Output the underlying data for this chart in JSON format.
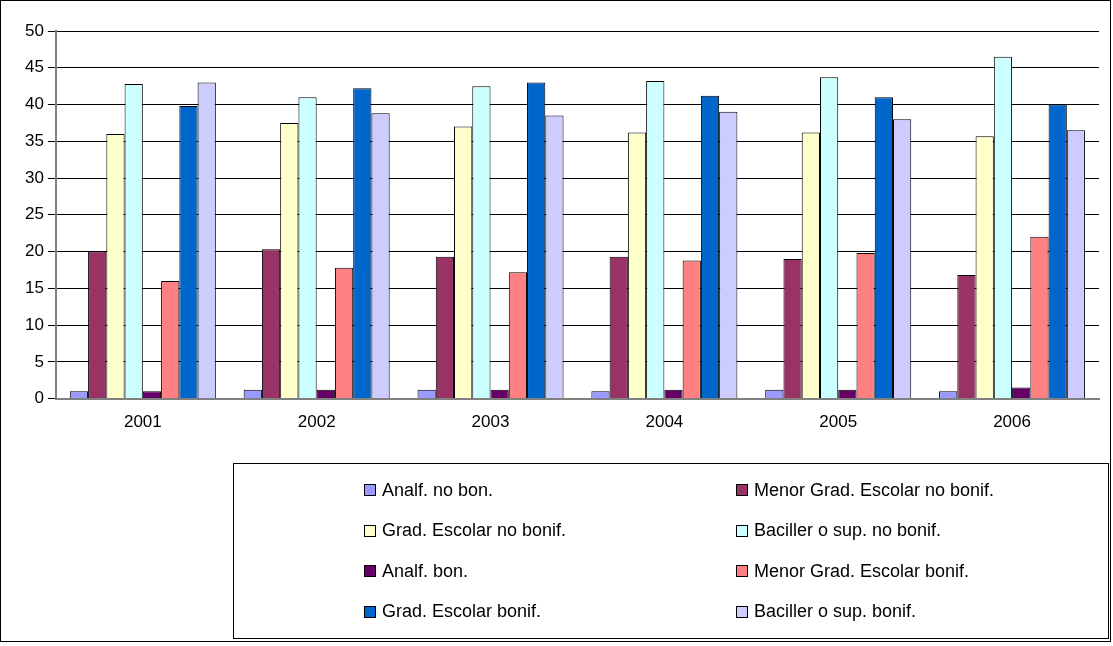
{
  "chart_data": {
    "type": "bar",
    "categories": [
      "2001",
      "2002",
      "2003",
      "2004",
      "2005",
      "2006"
    ],
    "series": [
      {
        "name": "Analf. no bon.",
        "color": "#9999ff",
        "values": [
          1,
          1.2,
          1.2,
          1,
          1.2,
          1
        ]
      },
      {
        "name": "Menor Grad. Escolar no bonif.",
        "color": "#993366",
        "values": [
          20,
          20.3,
          19.3,
          19.3,
          19,
          16.8
        ]
      },
      {
        "name": "Grad. Escolar no bonif.",
        "color": "#ffffcc",
        "values": [
          36,
          37.5,
          37,
          36.2,
          36.2,
          35.7
        ]
      },
      {
        "name": "Baciller o sup. no bonif.",
        "color": "#ccffff",
        "values": [
          42.8,
          41,
          42.5,
          43.2,
          43.7,
          46.5
        ]
      },
      {
        "name": "Analf. bon.",
        "color": "#660066",
        "values": [
          1,
          1.2,
          1.2,
          1.2,
          1.2,
          1.5
        ]
      },
      {
        "name": "Menor Grad. Escolar bonif.",
        "color": "#ff8080",
        "values": [
          16,
          17.8,
          17.2,
          18.8,
          19.8,
          22
        ]
      },
      {
        "name": "Grad. Escolar bonif.",
        "color": "#0066cc",
        "values": [
          39.8,
          42.2,
          43,
          41.2,
          41,
          40
        ]
      },
      {
        "name": "Baciller o sup. bonif.",
        "color": "#ccccff",
        "values": [
          43,
          38.8,
          38.5,
          39,
          38,
          36.5
        ]
      }
    ],
    "ylim": [
      0,
      50
    ],
    "yticks": [
      0,
      5,
      10,
      15,
      20,
      25,
      30,
      35,
      40,
      45,
      50
    ],
    "grid": "y",
    "legend": "bottom"
  }
}
